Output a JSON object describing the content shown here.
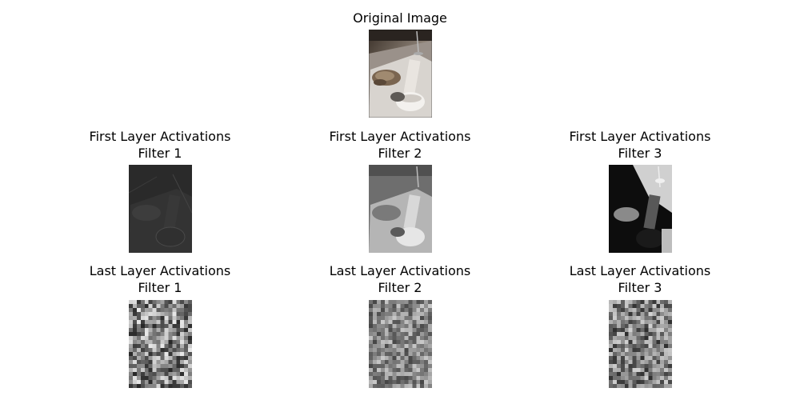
{
  "original": {
    "title": "Original Image"
  },
  "first_layer": [
    {
      "title": "First Layer Activations",
      "filter": "Filter 1"
    },
    {
      "title": "First Layer Activations",
      "filter": "Filter 2"
    },
    {
      "title": "First Layer Activations",
      "filter": "Filter 3"
    }
  ],
  "last_layer": [
    {
      "title": "Last Layer Activations",
      "filter": "Filter 1"
    },
    {
      "title": "Last Layer Activations",
      "filter": "Filter 2"
    },
    {
      "title": "Last Layer Activations",
      "filter": "Filter 3"
    }
  ]
}
